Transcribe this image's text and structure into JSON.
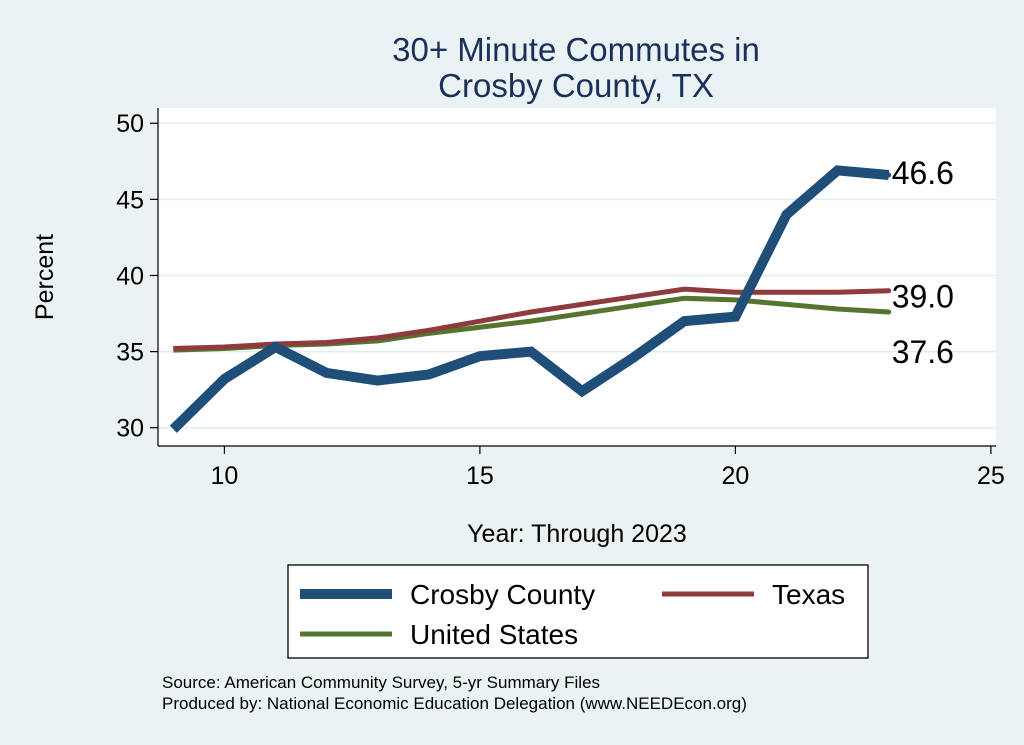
{
  "chart_data": {
    "type": "line",
    "title": [
      "30+ Minute Commutes in",
      "Crosby County, TX"
    ],
    "xlabel": "Year: Through 2023",
    "ylabel": "Percent",
    "xlim": [
      8.7,
      25.1
    ],
    "ylim": [
      28.8,
      51.0
    ],
    "xticks": [
      10,
      15,
      20,
      25
    ],
    "yticks": [
      30,
      35,
      40,
      45,
      50
    ],
    "grid": true,
    "series": [
      {
        "name": "Crosby County",
        "color": "#1f4e79",
        "x": [
          9,
          10,
          11,
          12,
          13,
          14,
          15,
          16,
          17,
          18,
          19,
          20,
          21,
          22,
          23
        ],
        "values": [
          29.9,
          33.2,
          35.3,
          33.6,
          33.1,
          33.5,
          34.7,
          35.0,
          32.4,
          34.6,
          37.0,
          37.3,
          44.0,
          46.9,
          46.6
        ],
        "end_label": "46.6"
      },
      {
        "name": "Texas",
        "color": "#8f3a3c",
        "x": [
          9,
          10,
          11,
          12,
          13,
          14,
          15,
          16,
          17,
          18,
          19,
          20,
          21,
          22,
          23
        ],
        "values": [
          35.2,
          35.3,
          35.5,
          35.6,
          35.9,
          36.4,
          37.0,
          37.6,
          38.1,
          38.6,
          39.1,
          38.9,
          38.9,
          38.9,
          39.0
        ],
        "end_label": "39.0"
      },
      {
        "name": "United States",
        "color": "#55752f",
        "x": [
          9,
          10,
          11,
          12,
          13,
          14,
          15,
          16,
          17,
          18,
          19,
          20,
          21,
          22,
          23
        ],
        "values": [
          35.1,
          35.2,
          35.4,
          35.5,
          35.7,
          36.2,
          36.6,
          37.0,
          37.5,
          38.0,
          38.5,
          38.4,
          38.1,
          37.8,
          37.6
        ],
        "end_label": "37.6"
      }
    ],
    "legend": {
      "placement": "bottom",
      "entries": [
        "Crosby County",
        "Texas",
        "United States"
      ]
    }
  },
  "source_lines": [
    "Source: American Community Survey, 5-yr Summary Files",
    "Produced by: National Economic Education Delegation (www.NEEDEcon.org)"
  ]
}
